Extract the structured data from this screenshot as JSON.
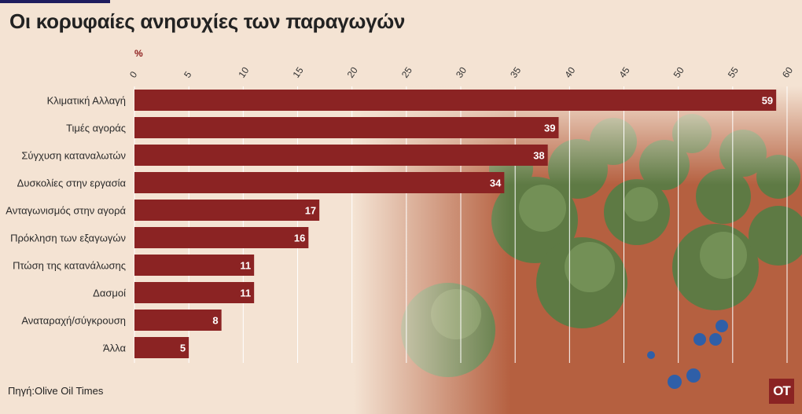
{
  "title": "Οι κορυφαίες ανησυχίες των παραγωγών",
  "unit_label": "%",
  "source": "Πηγή:Olive Oil Times",
  "logo_text": "OT",
  "colors": {
    "bar": "#8b2323",
    "background": "#f4e3d3",
    "title": "#222222",
    "accent_bar": "#1f1d5e"
  },
  "chart_data": {
    "type": "bar",
    "orientation": "horizontal",
    "categories": [
      "Κλιματική Αλλαγή",
      "Τιμές αγοράς",
      "Σύγχυση καταναλωτών",
      "Δυσκολίες στην εργασία",
      "Ανταγωνισμός στην αγορά",
      "Πρόκληση των εξαγωγών",
      "Πτώση της κατανάλωσης",
      "Δασμοί",
      "Αναταραχή/σύγκρουση",
      "Άλλα"
    ],
    "values": [
      59,
      39,
      38,
      34,
      17,
      16,
      11,
      11,
      8,
      5
    ],
    "xlim": [
      0,
      60
    ],
    "xticks": [
      "0",
      "5",
      "10",
      "15",
      "20",
      "25",
      "30",
      "35",
      "40",
      "45",
      "50",
      "55",
      "60"
    ],
    "axis_position": "top",
    "grid": true,
    "data_labels": true
  }
}
